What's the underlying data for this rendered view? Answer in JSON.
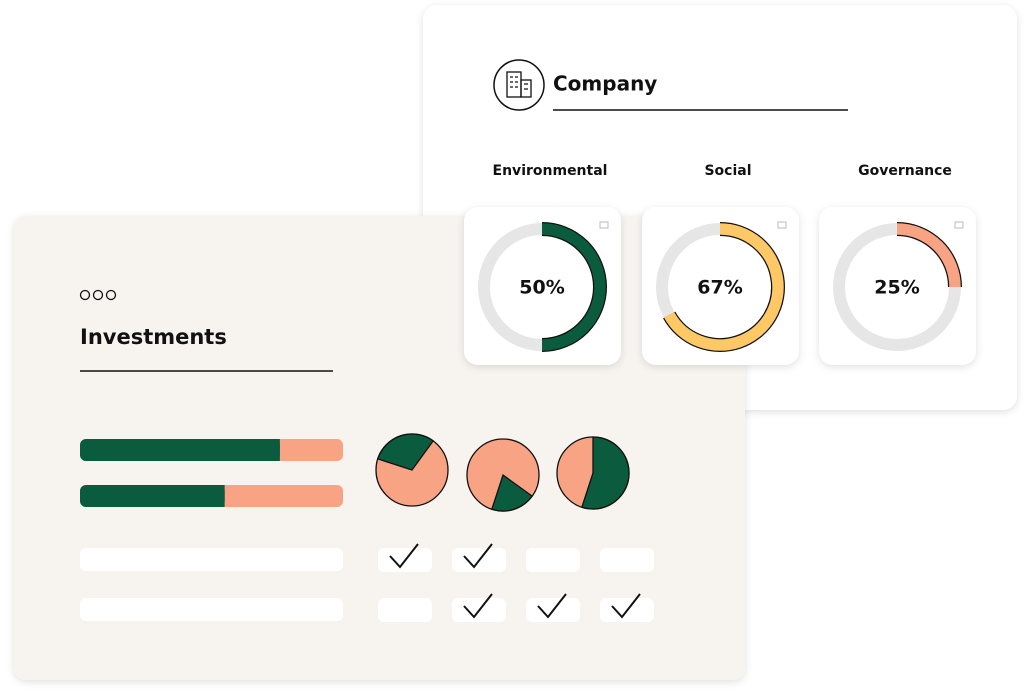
{
  "company": {
    "title": "Company",
    "metrics": [
      {
        "label": "Environmental",
        "value": 50,
        "value_label": "50%",
        "color": "#0b5c3e"
      },
      {
        "label": "Social",
        "value": 67,
        "value_label": "67%",
        "color": "#fdc865"
      },
      {
        "label": "Governance",
        "value": 25,
        "value_label": "25%",
        "color": "#f8a383"
      }
    ]
  },
  "investments": {
    "title": "Investments",
    "primary_color": "#0b5c3e",
    "secondary_color": "#f8a383",
    "bars": [
      76,
      55
    ],
    "pies": [
      30,
      20,
      55
    ],
    "checks": [
      [
        true,
        true,
        false,
        false
      ],
      [
        false,
        true,
        true,
        true
      ]
    ]
  }
}
